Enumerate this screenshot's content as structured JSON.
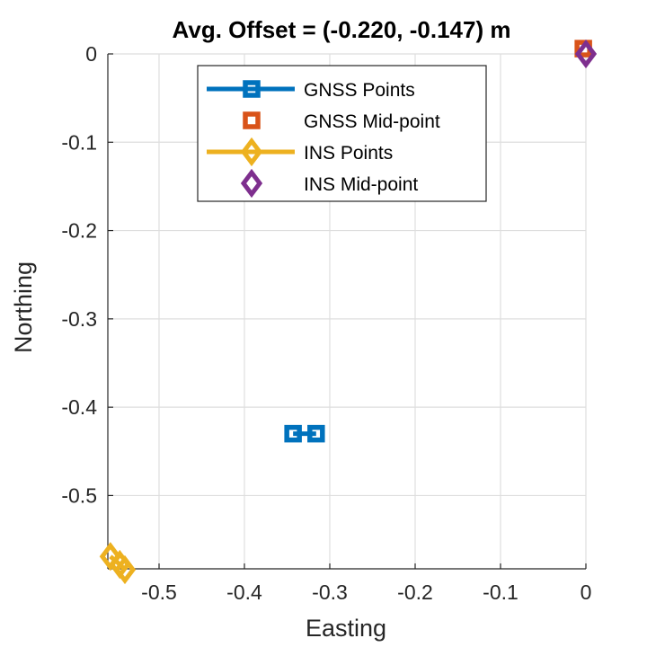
{
  "chart_data": {
    "type": "scatter",
    "title": "Avg. Offset = (-0.220, -0.147) m",
    "xlabel": "Easting",
    "ylabel": "Northing",
    "xlim": [
      -0.56,
      0.0
    ],
    "ylim": [
      -0.583,
      0.0
    ],
    "grid": true,
    "legend_position": "top",
    "x_ticks": [
      {
        "value": -0.5,
        "label": "-0.5"
      },
      {
        "value": -0.4,
        "label": "-0.4"
      },
      {
        "value": -0.3,
        "label": "-0.3"
      },
      {
        "value": -0.2,
        "label": "-0.2"
      },
      {
        "value": -0.1,
        "label": "-0.1"
      },
      {
        "value": 0,
        "label": "0"
      }
    ],
    "y_ticks": [
      {
        "value": 0,
        "label": "0"
      },
      {
        "value": -0.1,
        "label": "-0.1"
      },
      {
        "value": -0.2,
        "label": "-0.2"
      },
      {
        "value": -0.3,
        "label": "-0.3"
      },
      {
        "value": -0.4,
        "label": "-0.4"
      },
      {
        "value": -0.5,
        "label": "-0.5"
      }
    ],
    "series": [
      {
        "name": "GNSS Points",
        "marker": "square",
        "line": true,
        "color": "#0072BD",
        "points": [
          [
            -0.343,
            -0.43
          ],
          [
            -0.316,
            -0.43
          ]
        ]
      },
      {
        "name": "GNSS Mid-point",
        "marker": "square",
        "line": false,
        "color": "#D95319",
        "points": [
          [
            -0.003,
            0.006
          ]
        ]
      },
      {
        "name": "INS Points",
        "marker": "diamond",
        "line": true,
        "color": "#EDB120",
        "points": [
          [
            -0.557,
            -0.569
          ],
          [
            -0.546,
            -0.578
          ],
          [
            -0.54,
            -0.584
          ]
        ]
      },
      {
        "name": "INS Mid-point",
        "marker": "diamond",
        "line": false,
        "color": "#7E2F8E",
        "points": [
          [
            0.0,
            0.0
          ]
        ]
      }
    ]
  }
}
